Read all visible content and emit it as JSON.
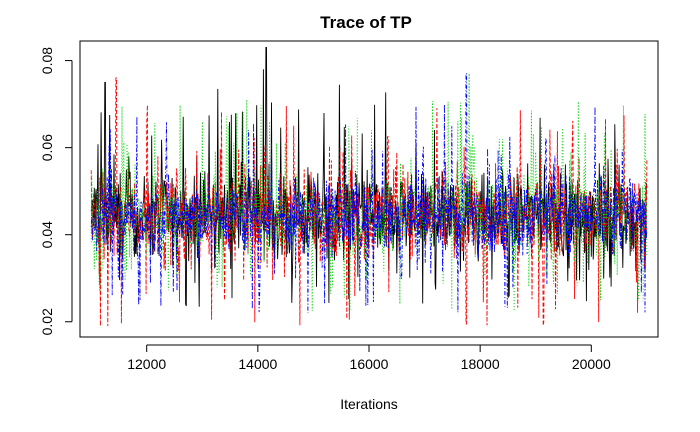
{
  "chart_data": {
    "type": "line",
    "title": "Trace of TP",
    "xlabel": "Iterations",
    "ylabel": "",
    "xlim": [
      10800,
      21200
    ],
    "ylim": [
      0.0165,
      0.0845
    ],
    "x_ticks": [
      12000,
      14000,
      16000,
      18000,
      20000
    ],
    "x_tick_labels": [
      "12000",
      "14000",
      "16000",
      "18000",
      "20000"
    ],
    "y_ticks": [
      0.02,
      0.04,
      0.06,
      0.08
    ],
    "y_tick_labels": [
      "0.02",
      "0.04",
      "0.06",
      "0.08"
    ],
    "grid": false,
    "legend": "none",
    "x": {
      "start": 11001,
      "end": 21000,
      "step": 1
    },
    "series": [
      {
        "color": "#000000",
        "line_style": "solid",
        "typical_range": [
          0.033,
          0.056
        ],
        "extreme_range": [
          0.023,
          0.083
        ],
        "notable_points": [
          {
            "x": 14150,
            "y": 0.083
          },
          {
            "x": 14100,
            "y": 0.078
          },
          {
            "x": 11250,
            "y": 0.075
          }
        ]
      },
      {
        "color": "#ff0000",
        "line_style": "dashed",
        "typical_range": [
          0.033,
          0.056
        ],
        "extreme_range": [
          0.019,
          0.076
        ],
        "notable_points": [
          {
            "x": 11300,
            "y": 0.019
          },
          {
            "x": 11450,
            "y": 0.076
          },
          {
            "x": 17750,
            "y": 0.0195
          }
        ]
      },
      {
        "color": "#00cd00",
        "line_style": "dotted",
        "typical_range": [
          0.033,
          0.056
        ],
        "extreme_range": [
          0.022,
          0.077
        ],
        "notable_points": [
          {
            "x": 17800,
            "y": 0.077
          },
          {
            "x": 13800,
            "y": 0.071
          }
        ]
      },
      {
        "color": "#0000ff",
        "line_style": "dotdash",
        "typical_range": [
          0.034,
          0.055
        ],
        "extreme_range": [
          0.022,
          0.077
        ],
        "notable_points": [
          {
            "x": 17750,
            "y": 0.077
          },
          {
            "x": 14900,
            "y": 0.022
          }
        ]
      }
    ]
  }
}
